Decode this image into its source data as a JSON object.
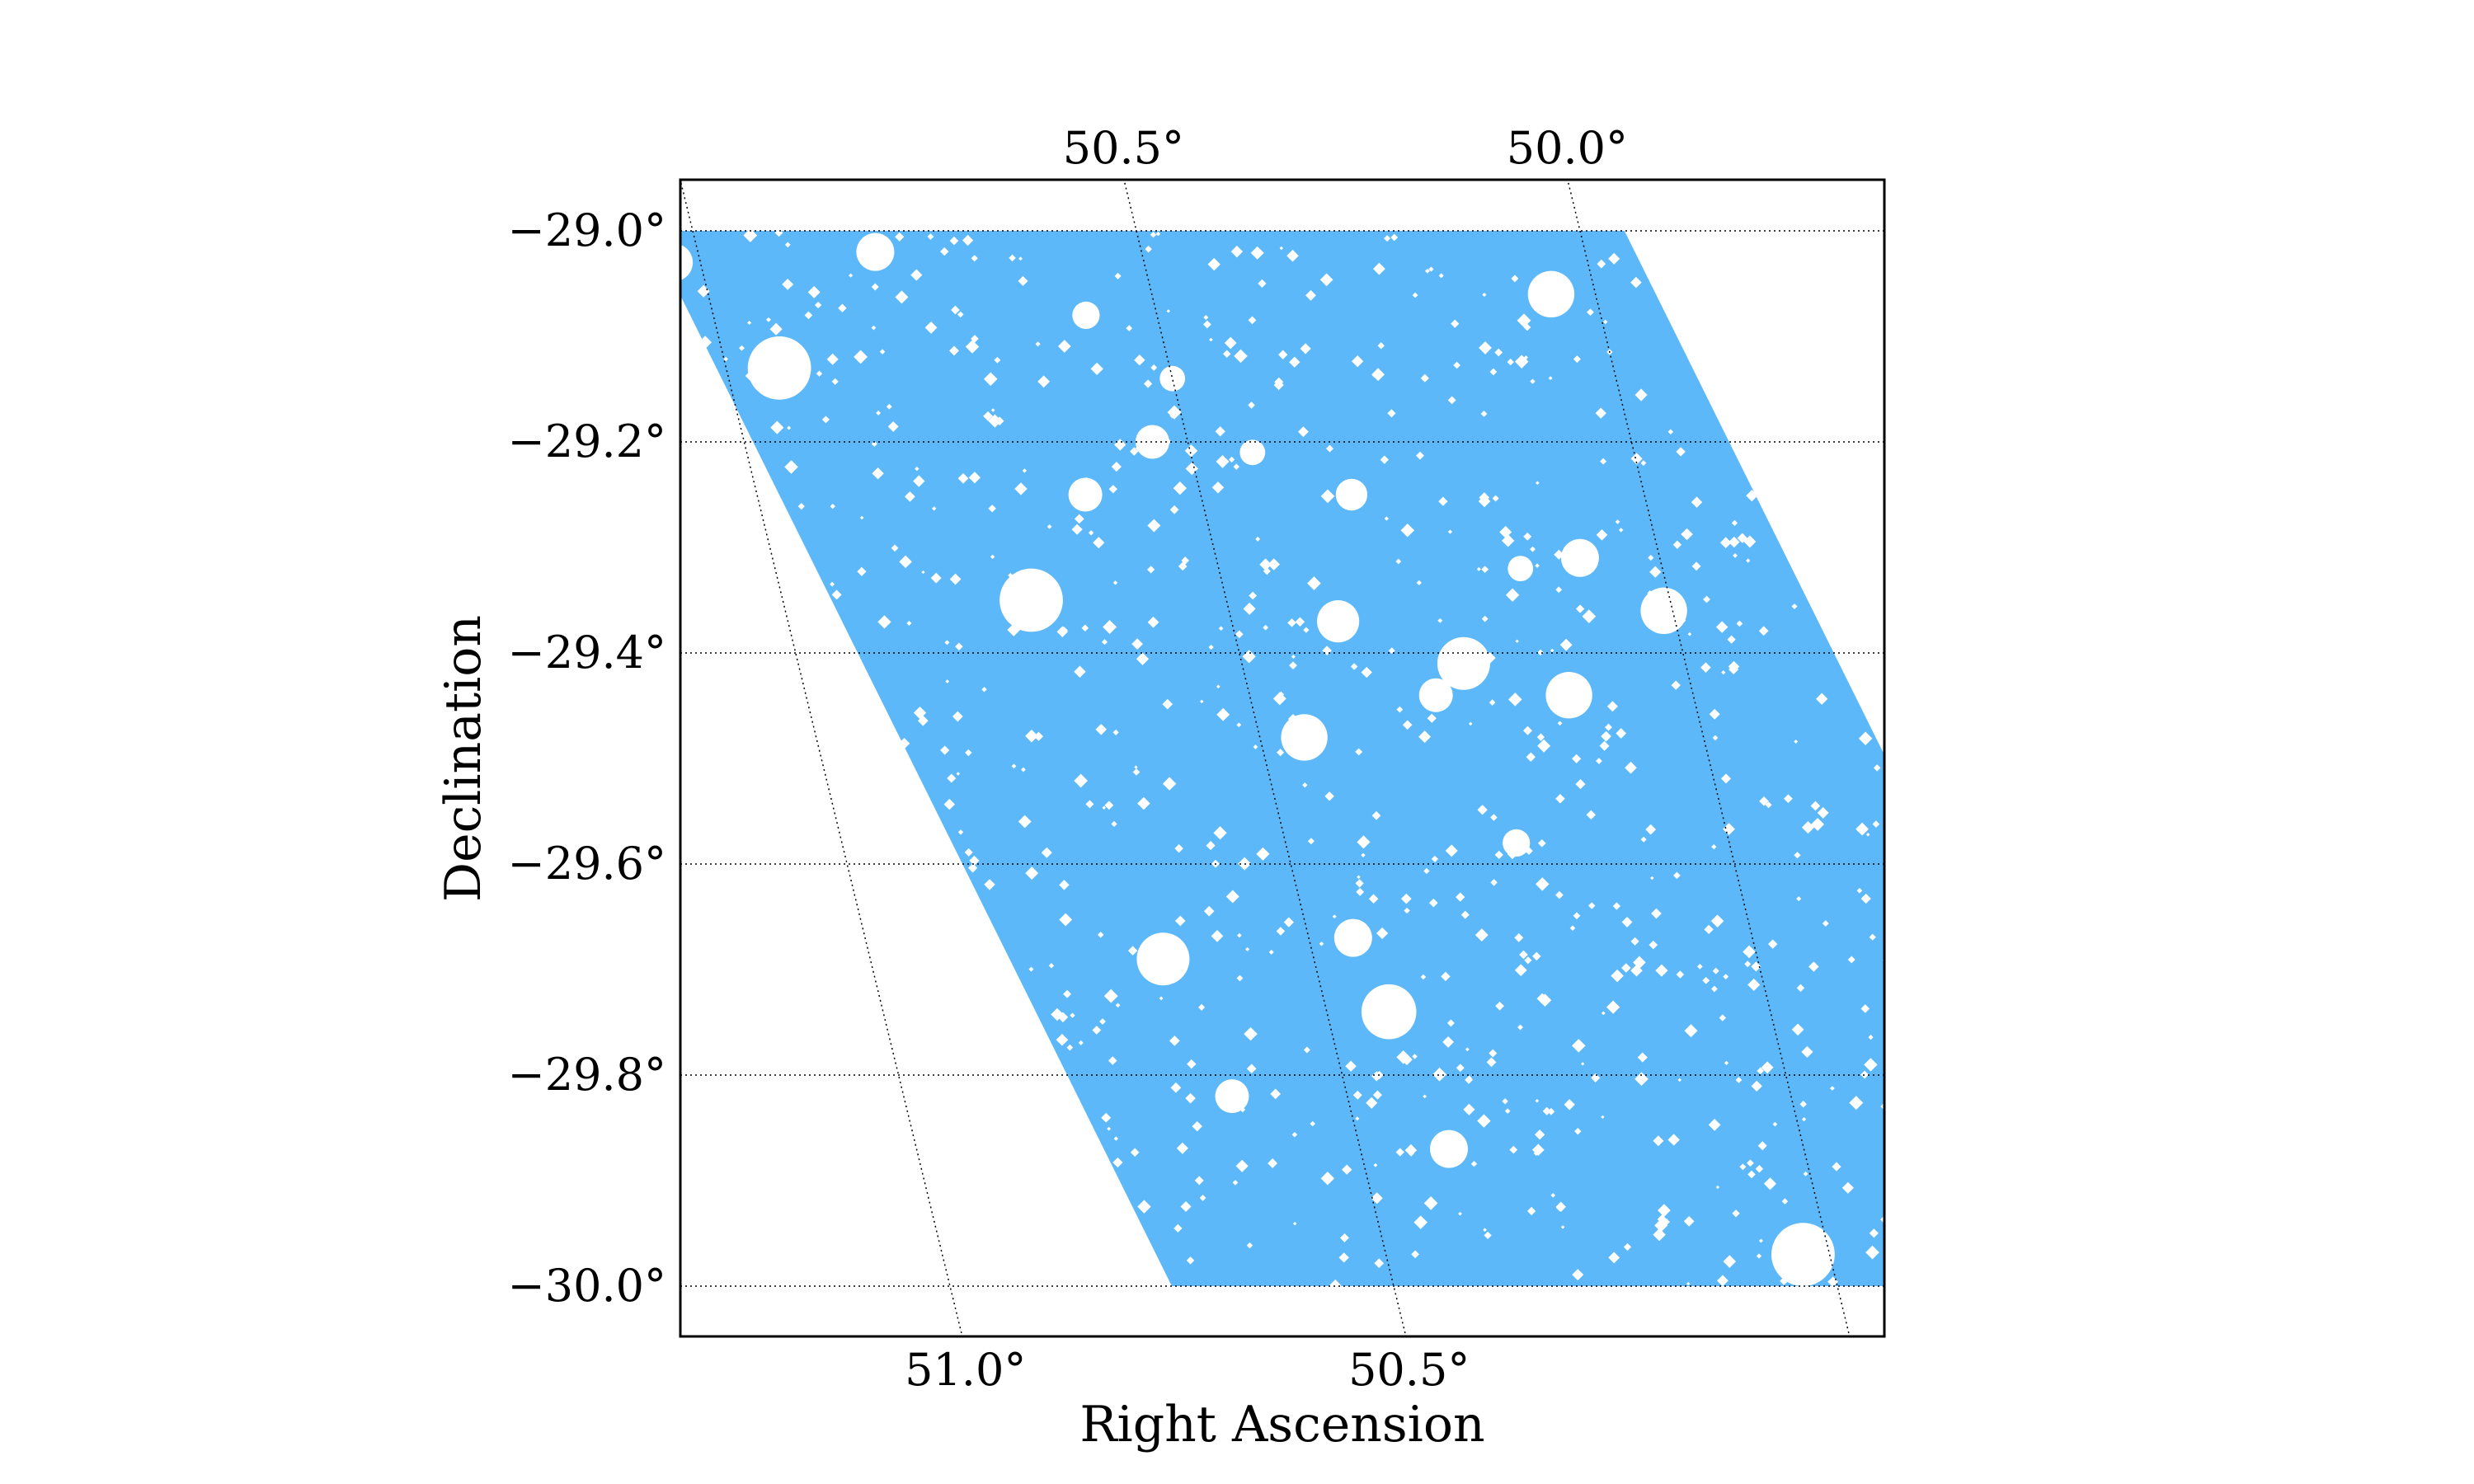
{
  "chart_data": {
    "type": "area",
    "description_key": "survey-footprint-mask",
    "xlabel": "Right Ascension",
    "ylabel": "Declination",
    "fill_color": "#5cb8f9",
    "mask_color": "#ffffff",
    "grid": true,
    "grid_style": "dotted",
    "footprint_corners": [
      {
        "ra": 51.05,
        "dec": -29.0
      },
      {
        "ra": 49.95,
        "dec": -29.0
      },
      {
        "ra": 49.65,
        "dec": -30.0
      },
      {
        "ra": 50.75,
        "dec": -30.0
      }
    ],
    "dec_ticks": [
      -29.0,
      -29.2,
      -29.4,
      -29.6,
      -29.8,
      -30.0
    ],
    "dec_tick_labels": [
      "−29.0°",
      "−29.2°",
      "−29.4°",
      "−29.6°",
      "−29.8°",
      "−30.0°"
    ],
    "ra_ticks_top": [
      50.5,
      50.0
    ],
    "ra_tick_labels_top": [
      "50.5°",
      "50.0°"
    ],
    "ra_ticks_bottom": [
      51.0,
      50.5
    ],
    "ra_tick_labels_bottom": [
      "51.0°",
      "50.5°"
    ],
    "mask_holes_large": [
      {
        "ra": 51.03,
        "dec": -29.03,
        "r": 0.018
      },
      {
        "ra": 50.8,
        "dec": -29.02,
        "r": 0.018
      },
      {
        "ra": 50.94,
        "dec": -29.13,
        "r": 0.03
      },
      {
        "ra": 50.58,
        "dec": -29.08,
        "r": 0.013
      },
      {
        "ra": 50.5,
        "dec": -29.14,
        "r": 0.012
      },
      {
        "ra": 50.05,
        "dec": -29.06,
        "r": 0.022
      },
      {
        "ra": 50.33,
        "dec": -29.25,
        "r": 0.015
      },
      {
        "ra": 50.63,
        "dec": -29.25,
        "r": 0.016
      },
      {
        "ra": 50.16,
        "dec": -29.32,
        "r": 0.012
      },
      {
        "ra": 50.09,
        "dec": -29.31,
        "r": 0.018
      },
      {
        "ra": 50.38,
        "dec": -29.37,
        "r": 0.02
      },
      {
        "ra": 50.25,
        "dec": -29.41,
        "r": 0.025
      },
      {
        "ra": 50.72,
        "dec": -29.35,
        "r": 0.03
      },
      {
        "ra": 50.29,
        "dec": -29.44,
        "r": 0.016
      },
      {
        "ra": 50.45,
        "dec": -29.48,
        "r": 0.022
      },
      {
        "ra": 50.14,
        "dec": -29.44,
        "r": 0.022
      },
      {
        "ra": 50.01,
        "dec": -29.36,
        "r": 0.022
      },
      {
        "ra": 50.24,
        "dec": -29.58,
        "r": 0.013
      },
      {
        "ra": 50.67,
        "dec": -29.69,
        "r": 0.025
      },
      {
        "ra": 50.45,
        "dec": -29.67,
        "r": 0.018
      },
      {
        "ra": 50.43,
        "dec": -29.74,
        "r": 0.026
      },
      {
        "ra": 50.63,
        "dec": -29.82,
        "r": 0.016
      },
      {
        "ra": 50.4,
        "dec": -29.87,
        "r": 0.018
      },
      {
        "ra": 50.03,
        "dec": -29.97,
        "r": 0.03
      },
      {
        "ra": 50.54,
        "dec": -29.2,
        "r": 0.016
      },
      {
        "ra": 50.43,
        "dec": -29.21,
        "r": 0.012
      }
    ]
  }
}
